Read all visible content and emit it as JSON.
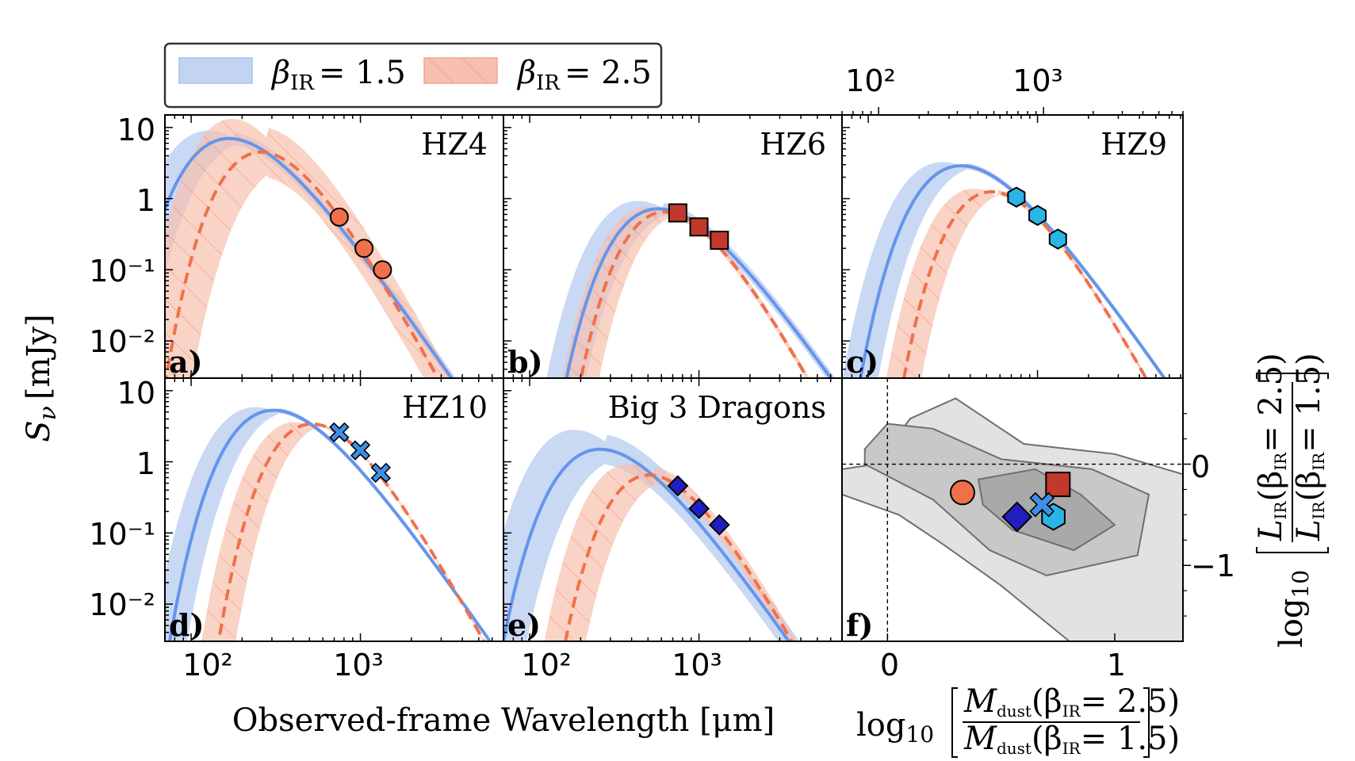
{
  "colors": {
    "blue_line": "#6495ED",
    "blue_band": "#c3d4f2",
    "red_line": "#f0704b",
    "red_band": "#f7c0ae",
    "grey_outer": "#e2e2e2",
    "grey_mid": "#c8c8c8",
    "grey_inner": "#a9a9a9"
  },
  "chart_data": [
    {
      "type": "line",
      "id": "a",
      "panel_letter": "a)",
      "title": "HZ4",
      "x_scale": "log",
      "y_scale": "log",
      "xlim": [
        70,
        7000
      ],
      "ylim": [
        0.003,
        15
      ],
      "xlabel": "Observed-frame Wavelength [μm]",
      "ylabel": "Sν [mJy]",
      "series": [
        {
          "name": "βIR = 1.5",
          "style": "solid",
          "peak_um": 180,
          "peak_mjy": 7,
          "beta": 1.5,
          "band_dex": 0.25
        },
        {
          "name": "βIR = 2.5",
          "style": "dashed",
          "peak_um": 280,
          "peak_mjy": 4.5,
          "beta": 2.5,
          "band_dex": 1.0
        }
      ],
      "points": {
        "marker": "circle",
        "color": "#f0704b",
        "x": [
          750,
          1050,
          1350
        ],
        "y": [
          0.55,
          0.2,
          0.1
        ]
      }
    },
    {
      "type": "line",
      "id": "b",
      "panel_letter": "b)",
      "title": "HZ6",
      "x_scale": "log",
      "y_scale": "log",
      "xlim": [
        70,
        7000
      ],
      "ylim": [
        0.003,
        15
      ],
      "series": [
        {
          "name": "βIR = 1.5",
          "style": "solid",
          "peak_um": 620,
          "peak_mjy": 0.72,
          "beta": 1.5,
          "band_dex": 0.25
        },
        {
          "name": "βIR = 2.5",
          "style": "dashed",
          "peak_um": 680,
          "peak_mjy": 0.65,
          "beta": 2.5,
          "band_dex": 0.15
        }
      ],
      "points": {
        "marker": "square",
        "color": "#c0392b",
        "x": [
          750,
          1000,
          1320
        ],
        "y": [
          0.63,
          0.4,
          0.26
        ]
      }
    },
    {
      "type": "line",
      "id": "c",
      "panel_letter": "c)",
      "title": "HZ9",
      "x_scale": "log",
      "y_scale": "log",
      "xlim": [
        70,
        7000
      ],
      "ylim": [
        0.003,
        15
      ],
      "series": [
        {
          "name": "βIR = 1.5",
          "style": "solid",
          "peak_um": 380,
          "peak_mjy": 2.9,
          "beta": 1.5,
          "band_dex": 0.12
        },
        {
          "name": "βIR = 2.5",
          "style": "dashed",
          "peak_um": 580,
          "peak_mjy": 1.25,
          "beta": 2.5,
          "band_dex": 0.1
        }
      ],
      "points": {
        "marker": "hexagon",
        "color": "#29b6e6",
        "x": [
          750,
          1000,
          1320
        ],
        "y": [
          1.05,
          0.58,
          0.27
        ]
      }
    },
    {
      "type": "line",
      "id": "d",
      "panel_letter": "d)",
      "title": "HZ10",
      "x_scale": "log",
      "y_scale": "log",
      "xlim": [
        70,
        7000
      ],
      "ylim": [
        0.003,
        15
      ],
      "series": [
        {
          "name": "βIR = 1.5",
          "style": "solid",
          "peak_um": 330,
          "peak_mjy": 5.3,
          "beta": 1.5,
          "band_dex": 0.1
        },
        {
          "name": "βIR = 2.5",
          "style": "dashed",
          "peak_um": 560,
          "peak_mjy": 3.4,
          "beta": 2.5,
          "band_dex": 0.06
        }
      ],
      "points": {
        "marker": "cross",
        "color": "#3d8fe6",
        "x": [
          750,
          1000,
          1320
        ],
        "y": [
          2.6,
          1.45,
          0.7
        ]
      }
    },
    {
      "type": "line",
      "id": "e",
      "panel_letter": "e)",
      "title": "Big 3 Dragons",
      "x_scale": "log",
      "y_scale": "log",
      "xlim": [
        70,
        7000
      ],
      "ylim": [
        0.003,
        15
      ],
      "series": [
        {
          "name": "βIR = 1.5",
          "style": "solid",
          "peak_um": 280,
          "peak_mjy": 1.5,
          "beta": 1.5,
          "band_dex": 0.6
        },
        {
          "name": "βIR = 2.5",
          "style": "dashed",
          "peak_um": 550,
          "peak_mjy": 0.65,
          "beta": 2.5,
          "band_dex": 0.35
        }
      ],
      "points": {
        "marker": "diamond",
        "color": "#1f1fbf",
        "x": [
          750,
          1000,
          1320
        ],
        "y": [
          0.46,
          0.22,
          0.13
        ]
      }
    },
    {
      "type": "scatter",
      "id": "f",
      "panel_letter": "f)",
      "xlim": [
        -0.2,
        1.3
      ],
      "ylim": [
        -1.75,
        0.85
      ],
      "xticks": [
        0,
        1
      ],
      "yticks": [
        0,
        -1
      ],
      "xlabel": "log10[Mdust(βIR=2.5) / Mdust(βIR=1.5)]",
      "ylabel": "log10[LIR(βIR=2.5) / LIR(βIR=1.5)]",
      "top_axis_ticks": [
        "10²",
        "10³"
      ],
      "top_axis_values": [
        100,
        1000
      ],
      "reference_lines": {
        "x": 0,
        "y": 0
      },
      "points": [
        {
          "name": "HZ4",
          "marker": "circle",
          "color": "#f0704b",
          "x": 0.33,
          "y": -0.28
        },
        {
          "name": "HZ6",
          "marker": "square",
          "color": "#c0392b",
          "x": 0.75,
          "y": -0.2
        },
        {
          "name": "HZ9",
          "marker": "hexagon",
          "color": "#29b6e6",
          "x": 0.73,
          "y": -0.52
        },
        {
          "name": "HZ10",
          "marker": "cross",
          "color": "#3d8fe6",
          "x": 0.68,
          "y": -0.4
        },
        {
          "name": "Big 3 Dragons",
          "marker": "diamond",
          "color": "#1f1fbf",
          "x": 0.57,
          "y": -0.52
        }
      ]
    }
  ],
  "labels": {
    "x_tick_100": "10²",
    "x_tick_1000": "10³",
    "y_tick_10": "10",
    "y_tick_1": "1",
    "y_tick_01": "10⁻¹",
    "y_tick_001": "10⁻²",
    "f_xtick_0": "0",
    "f_xtick_1": "1",
    "f_ytick_0": "0",
    "f_ytick_m1": "−1",
    "top_tick_100": "10²",
    "top_tick_1000": "10³",
    "ylabel_S": "S",
    "ylabel_nu": "ν",
    "ylabel_unit": "[mJy]",
    "xlabel_main": "Observed-frame Wavelength [μm]",
    "f_xlabel_log": "log",
    "f_xlabel_sub": "10",
    "f_xlabel_num_M": "M",
    "f_xlabel_num_sub": "dust",
    "f_xlabel_num_rest": "(β",
    "f_xlabel_num_ir": "IR",
    "f_xlabel_num_val": "= 2.5)",
    "f_xlabel_den_val": "= 1.5)",
    "f_ylabel_log": "log",
    "f_ylabel_sub": "10",
    "f_ylabel_L": "L",
    "f_ylabel_Lsub": "IR",
    "f_ylabel_num_rest": "(β",
    "f_ylabel_num_ir": "IR",
    "f_ylabel_num_val": "= 2.5)",
    "f_ylabel_den_val": "= 1.5)"
  },
  "legend": {
    "entries": [
      {
        "symbol": "β",
        "subscript": "IR",
        "value": "= 1.5"
      },
      {
        "symbol": "β",
        "subscript": "IR",
        "value": "= 2.5"
      }
    ]
  }
}
